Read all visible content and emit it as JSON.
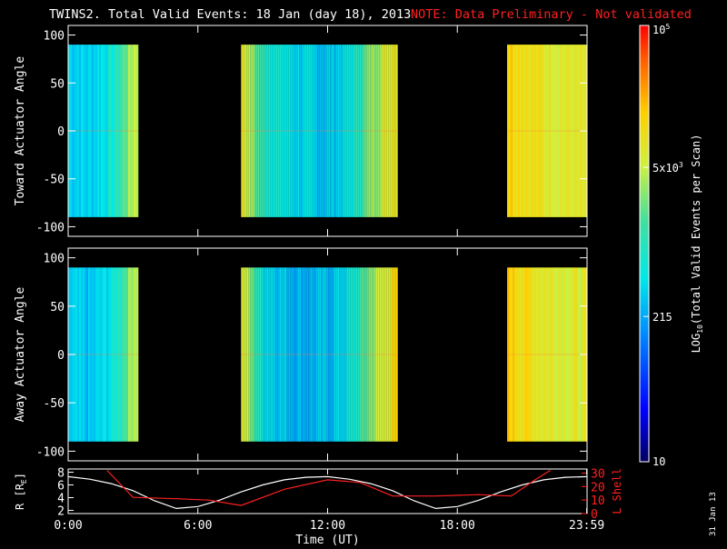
{
  "header": {
    "title": "TWINS2. Total Valid Events: 18 Jan (day  18), 2013",
    "note": "NOTE: Data Preliminary - Not validated",
    "title_color": "#ffffff",
    "note_color": "#ff2020"
  },
  "stamp": "31 Jan 13",
  "chart_data": [
    {
      "type": "heatmap",
      "panel": "toward",
      "ylabel": "Toward Actuator Angle",
      "ylim": [
        -110,
        110
      ],
      "xlim_hours": [
        0,
        24
      ],
      "y_ticks": [
        -100,
        -50,
        0,
        50,
        100
      ],
      "y_tick_labels": [
        "-100",
        "-50",
        "0",
        "50",
        "100"
      ],
      "data_angle_range": [
        -90,
        90
      ],
      "data_blocks_hours": [
        [
          0.0,
          3.25
        ],
        [
          8.0,
          15.25
        ],
        [
          20.3,
          24.0
        ]
      ],
      "mean_log_counts_by_hour": [
        {
          "h": 0.0,
          "v": 2.6
        },
        {
          "h": 1.0,
          "v": 2.55
        },
        {
          "h": 2.0,
          "v": 2.8
        },
        {
          "h": 3.0,
          "v": 3.7
        },
        {
          "h": 8.0,
          "v": 3.95
        },
        {
          "h": 9.0,
          "v": 3.0
        },
        {
          "h": 10.0,
          "v": 2.7
        },
        {
          "h": 11.0,
          "v": 2.55
        },
        {
          "h": 12.0,
          "v": 2.5
        },
        {
          "h": 13.0,
          "v": 2.7
        },
        {
          "h": 14.0,
          "v": 3.5
        },
        {
          "h": 15.0,
          "v": 4.0
        },
        {
          "h": 20.3,
          "v": 4.2
        },
        {
          "h": 22.0,
          "v": 3.9
        },
        {
          "h": 24.0,
          "v": 3.8
        }
      ]
    },
    {
      "type": "heatmap",
      "panel": "away",
      "ylabel": "Away Actuator Angle",
      "ylim": [
        -110,
        110
      ],
      "xlim_hours": [
        0,
        24
      ],
      "y_ticks": [
        -100,
        -50,
        0,
        50,
        100
      ],
      "y_tick_labels": [
        "-100",
        "-50",
        "0",
        "50",
        "100"
      ],
      "data_angle_range": [
        -90,
        90
      ],
      "data_blocks_hours": [
        [
          0.0,
          3.25
        ],
        [
          8.0,
          15.25
        ],
        [
          20.3,
          24.0
        ]
      ],
      "mean_log_counts_by_hour": [
        {
          "h": 0.0,
          "v": 2.5
        },
        {
          "h": 1.0,
          "v": 2.45
        },
        {
          "h": 2.0,
          "v": 2.7
        },
        {
          "h": 3.0,
          "v": 3.7
        },
        {
          "h": 8.0,
          "v": 3.9
        },
        {
          "h": 9.0,
          "v": 2.7
        },
        {
          "h": 10.0,
          "v": 2.5
        },
        {
          "h": 11.0,
          "v": 2.4
        },
        {
          "h": 12.0,
          "v": 2.45
        },
        {
          "h": 13.0,
          "v": 2.7
        },
        {
          "h": 14.0,
          "v": 3.5
        },
        {
          "h": 15.0,
          "v": 4.0
        },
        {
          "h": 20.3,
          "v": 4.2
        },
        {
          "h": 22.0,
          "v": 3.9
        },
        {
          "h": 24.0,
          "v": 3.8
        }
      ]
    },
    {
      "type": "line",
      "panel": "orbit",
      "ylabel": "R [R",
      "ylabel_sub": "E",
      "ylabel_close": "]",
      "y2label": "L Shell",
      "ylim": [
        1.5,
        8.5
      ],
      "y2lim": [
        0,
        33
      ],
      "y_ticks": [
        2,
        4,
        6,
        8
      ],
      "y_tick_labels": [
        "2",
        "4",
        "6",
        "8"
      ],
      "y2_ticks": [
        0,
        10,
        20,
        30
      ],
      "y2_tick_labels": [
        "0",
        "10",
        "20",
        "30"
      ],
      "x_ticks": [
        0,
        6,
        12,
        18,
        23.983
      ],
      "x_tick_labels": [
        "0:00",
        "6:00",
        "12:00",
        "18:00",
        "23:59"
      ],
      "xlabel": "Time (UT)",
      "series": [
        {
          "color": "#ffffff",
          "x": [
            0,
            1,
            2,
            3,
            4,
            5,
            6,
            7,
            8,
            9,
            10,
            11,
            12,
            13,
            14,
            15,
            16,
            17,
            18,
            19,
            20,
            21,
            22,
            23,
            24
          ],
          "y": [
            7.3,
            6.9,
            6.2,
            5.1,
            3.5,
            2.3,
            2.6,
            3.6,
            4.9,
            6.0,
            6.8,
            7.2,
            7.3,
            6.9,
            6.2,
            5.1,
            3.5,
            2.3,
            2.6,
            3.6,
            4.9,
            6.0,
            6.8,
            7.2,
            7.3
          ]
        },
        {
          "color": "#ff2020",
          "x": [
            1.8,
            3.0,
            5.0,
            6.5,
            8.0,
            10.0,
            12.0,
            13.5,
            15.0,
            17.0,
            19.0,
            20.5,
            21.5,
            22.3
          ],
          "y": [
            32,
            12,
            11,
            10,
            6,
            18,
            25,
            23,
            13,
            13,
            14,
            13,
            24,
            32
          ]
        }
      ]
    }
  ],
  "colorbar": {
    "label": "LOG",
    "label_sub": "10",
    "label_rest": "(Total Valid Events per Scan)",
    "ticks": [
      {
        "value_log": 5,
        "text": "10",
        "sup": "5"
      },
      {
        "value_log": 3.699,
        "text": "5x10",
        "sup": "3"
      },
      {
        "value_log": 2.332,
        "text": "215",
        "sup": ""
      },
      {
        "value_log": 1,
        "text": "10",
        "sup": ""
      }
    ],
    "range_log": [
      1,
      5
    ]
  }
}
